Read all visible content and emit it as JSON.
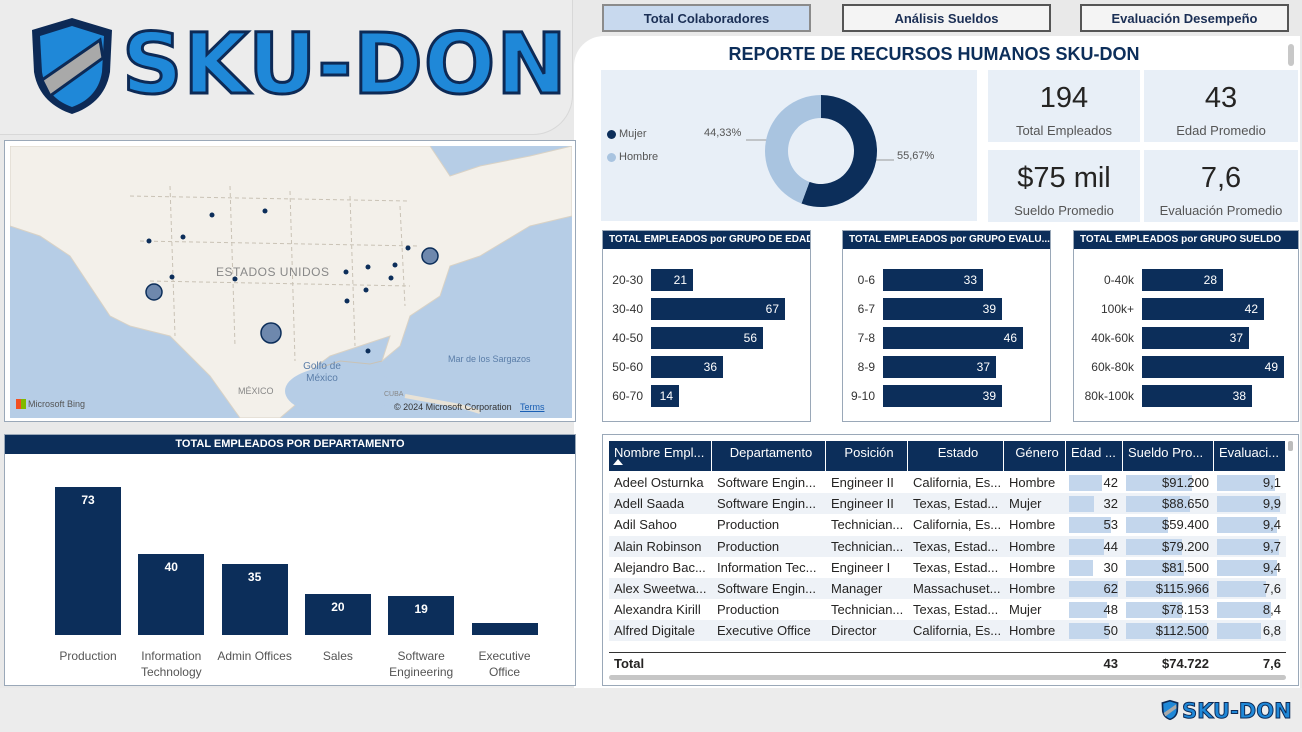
{
  "brand": {
    "name": "SKU-DON"
  },
  "nav": [
    {
      "label": "Total Colaboradores"
    },
    {
      "label": "Análisis Sueldos"
    },
    {
      "label": "Evaluación Desempeño"
    }
  ],
  "report_title": "REPORTE DE RECURSOS HUMANOS SKU-DON",
  "donut": {
    "legend": [
      {
        "name": "Mujer",
        "color": "#0c2e5a"
      },
      {
        "name": "Hombre",
        "color": "#a9c4e0"
      }
    ],
    "left_label": "44,33%",
    "right_label": "55,67%",
    "mujer_pct": 44.33,
    "hombre_pct": 55.67
  },
  "kpis": [
    {
      "value": "194",
      "label": "Total Empleados"
    },
    {
      "value": "43",
      "label": "Edad Promedio"
    },
    {
      "value": "$75 mil",
      "label": "Sueldo Promedio"
    },
    {
      "value": "7,6",
      "label": "Evaluación Promedio"
    }
  ],
  "age_chart": {
    "title": "TOTAL EMPLEADOS por GRUPO DE EDAD",
    "max": 67,
    "rows": [
      {
        "label": "20-30",
        "value": 21
      },
      {
        "label": "30-40",
        "value": 67
      },
      {
        "label": "40-50",
        "value": 56
      },
      {
        "label": "50-60",
        "value": 36
      },
      {
        "label": "60-70",
        "value": 14
      }
    ]
  },
  "eval_chart": {
    "title": "TOTAL EMPLEADOS por GRUPO EVALU...",
    "max": 46,
    "rows": [
      {
        "label": "0-6",
        "value": 33
      },
      {
        "label": "6-7",
        "value": 39
      },
      {
        "label": "7-8",
        "value": 46
      },
      {
        "label": "8-9",
        "value": 37
      },
      {
        "label": "9-10",
        "value": 39
      }
    ]
  },
  "salary_chart": {
    "title": "TOTAL EMPLEADOS por GRUPO SUELDO",
    "max": 49,
    "rows": [
      {
        "label": "0-40k",
        "value": 28
      },
      {
        "label": "100k+",
        "value": 42
      },
      {
        "label": "40k-60k",
        "value": 37
      },
      {
        "label": "60k-80k",
        "value": 49
      },
      {
        "label": "80k-100k",
        "value": 38
      }
    ]
  },
  "map": {
    "country_label": "ESTADOS UNIDOS",
    "gulf_label": "Golfo de México",
    "sea_label": "Mar de los Sargazos",
    "mexico_label": "MÉXICO",
    "cuba_label": "CUBA",
    "bing": "Microsoft Bing",
    "copyright": "© 2024 Microsoft Corporation",
    "terms": "Terms"
  },
  "chart_data": {
    "type": "bar",
    "title": "TOTAL EMPLEADOS POR DEPARTAMENTO",
    "categories": [
      "Production",
      "Information Technology",
      "Admin Offices",
      "Sales",
      "Software Engineering",
      "Executive Office"
    ],
    "category_lines": [
      [
        "Production"
      ],
      [
        "Information",
        "Technology"
      ],
      [
        "Admin Offices"
      ],
      [
        "Sales"
      ],
      [
        "Software",
        "Engineering"
      ],
      [
        "Executive",
        "Office"
      ]
    ],
    "values": [
      73,
      40,
      35,
      20,
      19,
      6
    ],
    "value_labels": [
      "73",
      "40",
      "35",
      "20",
      "19",
      ""
    ],
    "ylim": [
      0,
      73
    ],
    "color": "#0c2e5a"
  },
  "table": {
    "columns": [
      "Nombre Empl...",
      "Departamento",
      "Posición",
      "Estado",
      "Género",
      "Edad ...",
      "Sueldo Pro...",
      "Evaluaci..."
    ],
    "rows": [
      [
        "Adeel Osturnka",
        "Software Engin...",
        "Engineer II",
        "California, Es...",
        "Hombre",
        "42",
        "$91.200",
        "9,1"
      ],
      [
        "Adell Saada",
        "Software Engin...",
        "Engineer II",
        "Texas, Estad...",
        "Mujer",
        "32",
        "$88.650",
        "9,9"
      ],
      [
        "Adil Sahoo",
        "Production",
        "Technician...",
        "California, Es...",
        "Hombre",
        "53",
        "$59.400",
        "9,4"
      ],
      [
        "Alain Robinson",
        "Production",
        "Technician...",
        "Texas, Estad...",
        "Hombre",
        "44",
        "$79.200",
        "9,7"
      ],
      [
        "Alejandro Bac...",
        "Information Tec...",
        "Engineer I",
        "Texas, Estad...",
        "Hombre",
        "30",
        "$81.500",
        "9,4"
      ],
      [
        "Alex Sweetwa...",
        "Software Engin...",
        "Manager",
        "Massachuset...",
        "Hombre",
        "62",
        "$115.966",
        "7,6"
      ],
      [
        "Alexandra Kirill",
        "Production",
        "Technician...",
        "Texas, Estad...",
        "Mujer",
        "48",
        "$78.153",
        "8,4"
      ],
      [
        "Alfred Digitale",
        "Executive Office",
        "Director",
        "California, Es...",
        "Hombre",
        "50",
        "$112.500",
        "6,8"
      ]
    ],
    "bar_fractions": [
      [
        0.68,
        0.79,
        0.91
      ],
      [
        0.52,
        0.77,
        0.99
      ],
      [
        0.85,
        0.51,
        0.94
      ],
      [
        0.71,
        0.68,
        0.97
      ],
      [
        0.48,
        0.7,
        0.94
      ],
      [
        1.0,
        1.0,
        0.76
      ],
      [
        0.77,
        0.67,
        0.84
      ],
      [
        0.81,
        0.97,
        0.68
      ]
    ],
    "total": {
      "label": "Total",
      "edad": "43",
      "sueldo": "$74.722",
      "eval": "7,6"
    }
  }
}
